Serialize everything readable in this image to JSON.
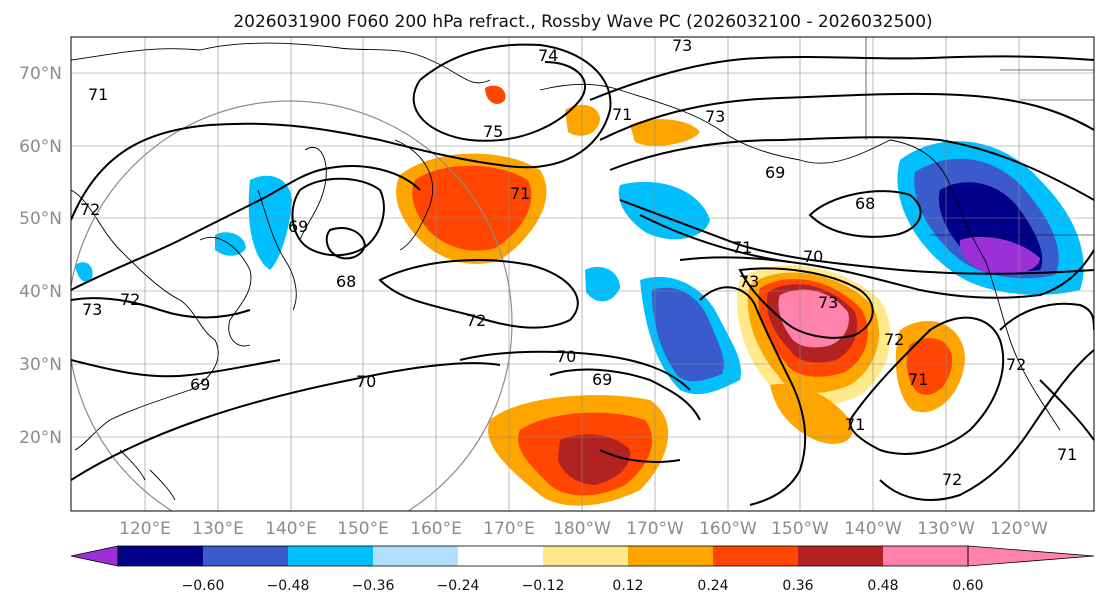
{
  "title": "2026031900 F060 200 hPa refract., Rossby Wave PC (2026032100 - 2026032500)",
  "lat_labels": [
    "70°N",
    "60°N",
    "50°N",
    "40°N",
    "30°N",
    "20°N"
  ],
  "lon_labels": [
    "120°E",
    "130°E",
    "140°E",
    "150°E",
    "160°E",
    "170°E",
    "180°W",
    "170°W",
    "160°W",
    "150°W",
    "140°W",
    "130°W",
    "120°W"
  ],
  "colorbar": {
    "ticks": [
      "−0.60",
      "−0.48",
      "−0.36",
      "−0.24",
      "−0.12",
      "0.12",
      "0.24",
      "0.36",
      "0.48",
      "0.60"
    ],
    "colors": [
      "#9b30d9",
      "#00008b",
      "#3a5bcc",
      "#00bfff",
      "#b0e2ff",
      "#ffffff",
      "#ffe98a",
      "#ffa500",
      "#ff4500",
      "#b22222",
      "#ff82ab",
      "#ff82ab"
    ]
  },
  "contour_labels": [
    "74",
    "73",
    "71",
    "75",
    "73",
    "71",
    "72",
    "69",
    "71",
    "69",
    "68",
    "68",
    "72",
    "71",
    "70",
    "73",
    "73",
    "72",
    "70",
    "69",
    "70",
    "69",
    "71",
    "72",
    "71",
    "72",
    "72",
    "71",
    "73"
  ]
}
